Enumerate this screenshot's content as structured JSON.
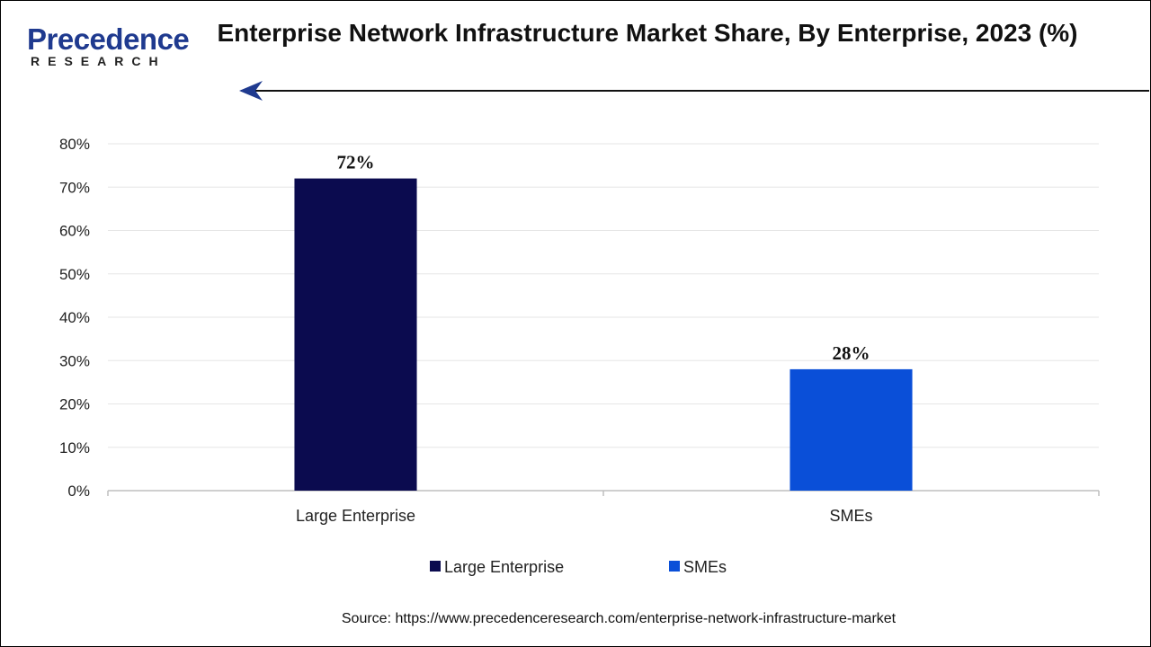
{
  "header": {
    "logo_main": "Precedence",
    "logo_sub": "RESEARCH",
    "title": "Enterprise Network Infrastructure Market Share, By Enterprise, 2023 (%)"
  },
  "chart_data": {
    "type": "bar",
    "title": "Enterprise Network Infrastructure Market Share, By Enterprise, 2023 (%)",
    "categories": [
      "Large Enterprise",
      "SMEs"
    ],
    "values": [
      72,
      28
    ],
    "data_labels": [
      "72%",
      "28%"
    ],
    "colors": [
      "#0b0b4f",
      "#0a4fd8"
    ],
    "ylim": [
      0,
      80
    ],
    "yticks": [
      "0%",
      "10%",
      "20%",
      "30%",
      "40%",
      "50%",
      "60%",
      "70%",
      "80%"
    ],
    "grid": true,
    "legend": {
      "placement": "bottom",
      "entries": [
        {
          "label": "Large Enterprise",
          "color": "#0b0b4f"
        },
        {
          "label": "SMEs",
          "color": "#0a4fd8"
        }
      ]
    },
    "xlabel": "",
    "ylabel": ""
  },
  "footer": {
    "source": "Source: https://www.precedenceresearch.com/enterprise-network-infrastructure-market"
  },
  "colors": {
    "brand": "#1f3a8f",
    "grid": "#e6e6e6",
    "axis": "#bfbfbf"
  }
}
